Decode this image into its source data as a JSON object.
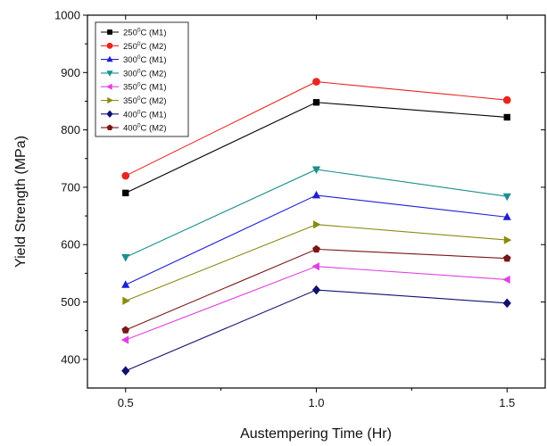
{
  "chart_data": {
    "type": "line",
    "xlabel": "Austempering Time (Hr)",
    "ylabel": "Yield Strength (MPa)",
    "xlim": [
      0.4,
      1.6
    ],
    "ylim": [
      350,
      1000
    ],
    "x_ticks": [
      "0.5",
      "1.0",
      "1.5"
    ],
    "y_ticks": [
      "400",
      "500",
      "600",
      "700",
      "800",
      "900",
      "1000"
    ],
    "x": [
      0.5,
      1.0,
      1.5
    ],
    "grid": false,
    "legend_position": "top-left",
    "series": [
      {
        "name": "250°C (M1)",
        "base": "250",
        "sup": "0",
        "unit": "C (M1)",
        "color": "#000000",
        "marker": "square",
        "values": [
          690,
          848,
          822
        ]
      },
      {
        "name": "250°C (M2)",
        "base": "250",
        "sup": "0",
        "unit": "C (M2)",
        "color": "#e8251f",
        "marker": "circle",
        "values": [
          720,
          884,
          852
        ]
      },
      {
        "name": "300°C (M1)",
        "base": "300",
        "sup": "0",
        "unit": "C (M1)",
        "color": "#1f1fd6",
        "marker": "triangle-up",
        "values": [
          530,
          686,
          648
        ]
      },
      {
        "name": "300°C (M2)",
        "base": "300",
        "sup": "0",
        "unit": "C (M2)",
        "color": "#1a8f8f",
        "marker": "triangle-down",
        "values": [
          578,
          731,
          684
        ]
      },
      {
        "name": "350°C (M1)",
        "base": "350",
        "sup": "0",
        "unit": "C (M1)",
        "color": "#e23fe2",
        "marker": "triangle-left",
        "values": [
          434,
          562,
          539
        ]
      },
      {
        "name": "350°C (M2)",
        "base": "350",
        "sup": "0",
        "unit": "C (M2)",
        "color": "#8a8a10",
        "marker": "triangle-right",
        "values": [
          502,
          635,
          608
        ]
      },
      {
        "name": "400°C (M1)",
        "base": "400",
        "sup": "0",
        "unit": "C (M1)",
        "color": "#10106e",
        "marker": "diamond",
        "values": [
          380,
          521,
          498
        ]
      },
      {
        "name": "400°C (M2)",
        "base": "400",
        "sup": "0",
        "unit": "C (M2)",
        "color": "#7a1616",
        "marker": "pentagon",
        "values": [
          451,
          592,
          576
        ]
      }
    ]
  }
}
